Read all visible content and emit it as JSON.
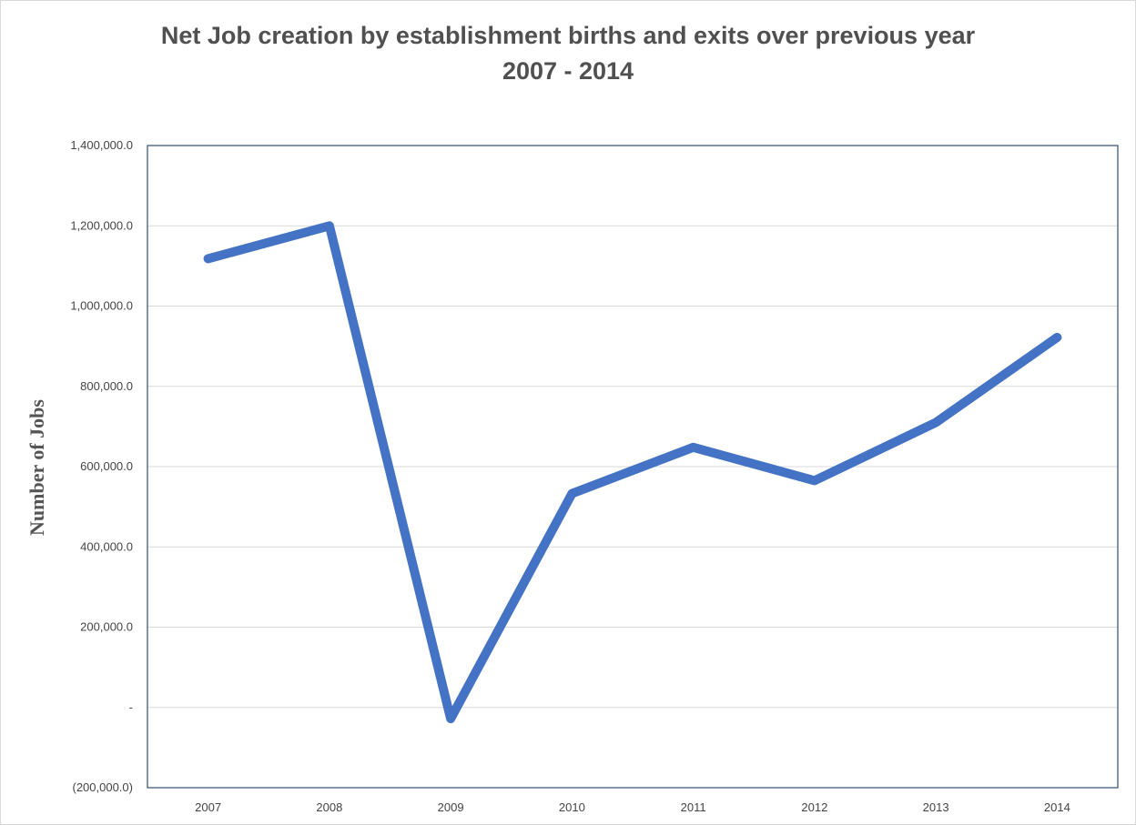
{
  "chart_data": {
    "type": "line",
    "title": "Net Job creation by establishment births and exits over previous year",
    "subtitle": "2007 - 2014",
    "xlabel": "",
    "ylabel": "Number of Jobs",
    "categories": [
      "2007",
      "2008",
      "2009",
      "2010",
      "2011",
      "2012",
      "2013",
      "2014"
    ],
    "series": [
      {
        "values": [
          1118000,
          1200000,
          -28000,
          533000,
          648000,
          565000,
          710000,
          922000
        ]
      }
    ],
    "ylim": [
      -200000,
      1400000
    ],
    "yticks": [
      -200000,
      0,
      200000,
      400000,
      600000,
      800000,
      1000000,
      1200000,
      1400000
    ],
    "ytick_labels": [
      "(200,000.0)",
      "-",
      "200,000.0",
      "400,000.0",
      "600,000.0",
      "800,000.0",
      "1,000,000.0",
      "1,200,000.0",
      "1,400,000.0"
    ],
    "grid": true,
    "legend": "none",
    "colors": {
      "line": "#4472c4",
      "grid": "#d9d9d9",
      "axis": "#2f4f6f"
    }
  }
}
